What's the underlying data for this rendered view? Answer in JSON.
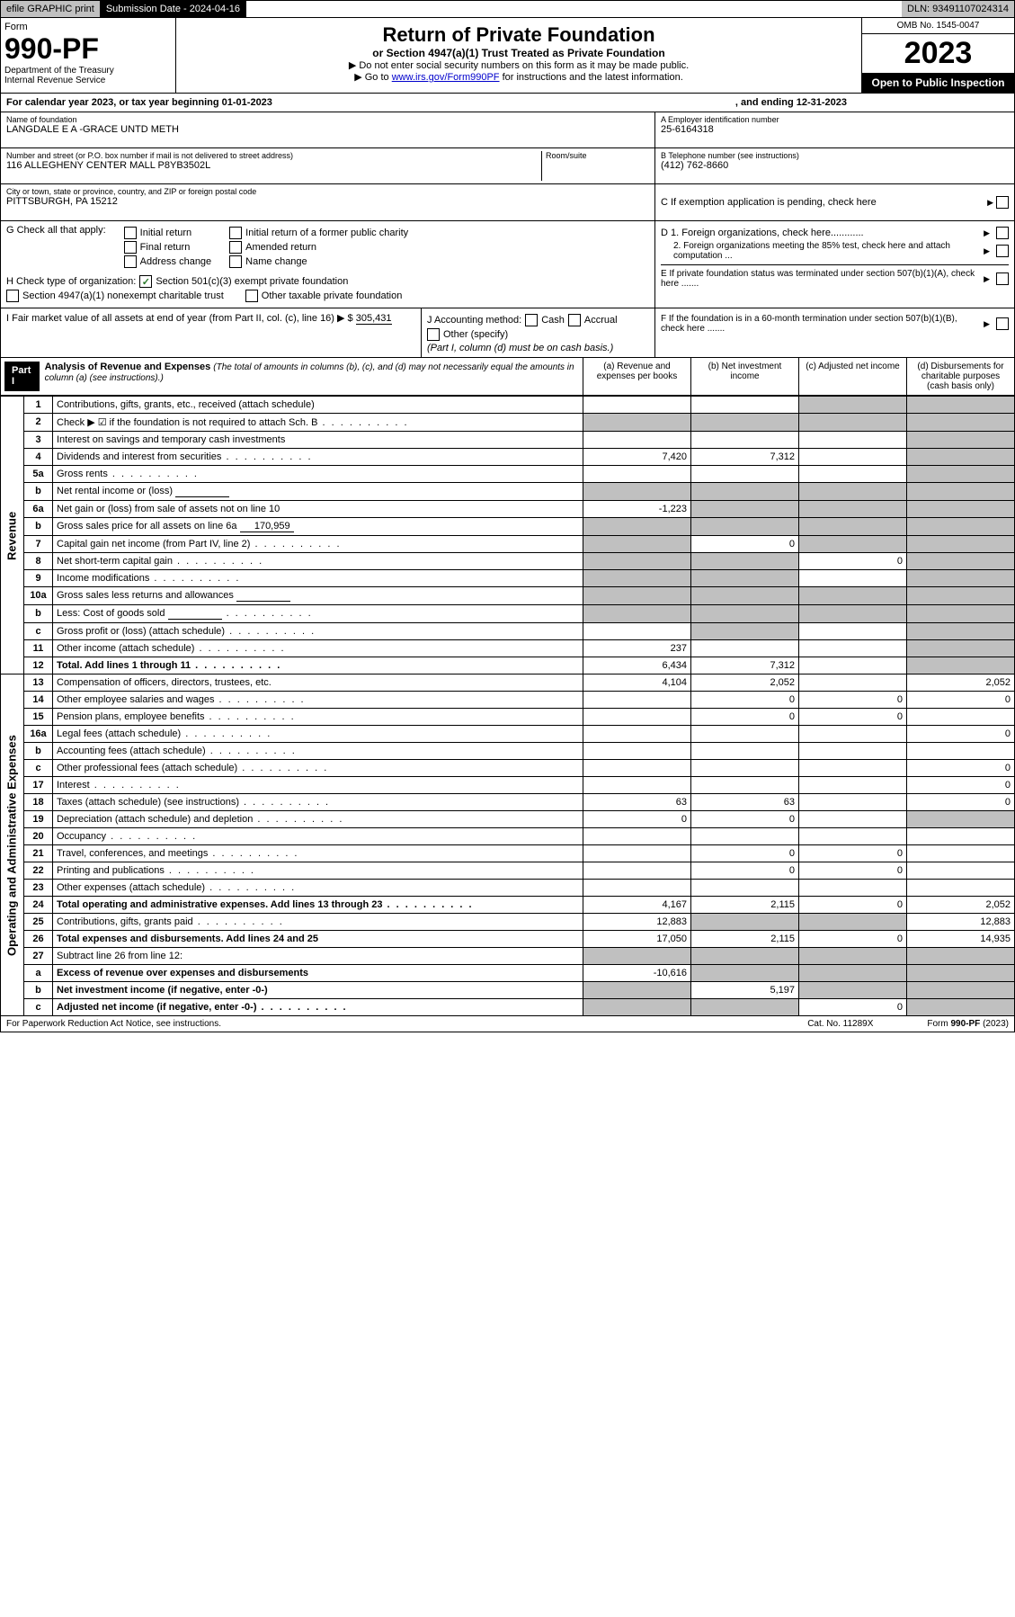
{
  "top": {
    "efile": "efile GRAPHIC print",
    "sub_label": "Submission Date - 2024-04-16",
    "dln": "DLN: 93491107024314"
  },
  "header": {
    "form": "Form",
    "num": "990-PF",
    "dept": "Department of the Treasury",
    "irs": "Internal Revenue Service",
    "title": "Return of Private Foundation",
    "subtitle": "or Section 4947(a)(1) Trust Treated as Private Foundation",
    "instr1": "▶ Do not enter social security numbers on this form as it may be made public.",
    "instr2_pre": "▶ Go to ",
    "instr2_link": "www.irs.gov/Form990PF",
    "instr2_post": " for instructions and the latest information.",
    "omb": "OMB No. 1545-0047",
    "year": "2023",
    "open": "Open to Public Inspection"
  },
  "calyear": {
    "begin": "For calendar year 2023, or tax year beginning 01-01-2023",
    "end": ", and ending 12-31-2023"
  },
  "info": {
    "name_label": "Name of foundation",
    "name": "LANGDALE E A -GRACE UNTD METH",
    "addr_label": "Number and street (or P.O. box number if mail is not delivered to street address)",
    "addr": "116 ALLEGHENY CENTER MALL P8YB3502L",
    "room_label": "Room/suite",
    "city_label": "City or town, state or province, country, and ZIP or foreign postal code",
    "city": "PITTSBURGH, PA  15212",
    "ein_label": "A Employer identification number",
    "ein": "25-6164318",
    "tel_label": "B Telephone number (see instructions)",
    "tel": "(412) 762-8660",
    "c_label": "C If exemption application is pending, check here"
  },
  "g": {
    "label": "G Check all that apply:",
    "initial": "Initial return",
    "final": "Final return",
    "addr_change": "Address change",
    "initial_former": "Initial return of a former public charity",
    "amended": "Amended return",
    "name_change": "Name change"
  },
  "h": {
    "label": "H Check type of organization:",
    "opt1": "Section 501(c)(3) exempt private foundation",
    "opt2": "Section 4947(a)(1) nonexempt charitable trust",
    "opt3": "Other taxable private foundation"
  },
  "d": {
    "d1": "D 1. Foreign organizations, check here............",
    "d2": "2. Foreign organizations meeting the 85% test, check here and attach computation ...",
    "e": "E  If private foundation status was terminated under section 507(b)(1)(A), check here .......",
    "f": "F  If the foundation is in a 60-month termination under section 507(b)(1)(B), check here ......."
  },
  "i": {
    "label": "I Fair market value of all assets at end of year (from Part II, col. (c), line 16)",
    "arrow": "▶ $",
    "val": "305,431"
  },
  "j": {
    "label": "J Accounting method:",
    "cash": "Cash",
    "accrual": "Accrual",
    "other": "Other (specify)",
    "note": "(Part I, column (d) must be on cash basis.)"
  },
  "part1": {
    "label": "Part I",
    "title": "Analysis of Revenue and Expenses",
    "note": "(The total of amounts in columns (b), (c), and (d) may not necessarily equal the amounts in column (a) (see instructions).)",
    "col_a": "(a)   Revenue and expenses per books",
    "col_b": "(b)   Net investment income",
    "col_c": "(c)   Adjusted net income",
    "col_d": "(d)   Disbursements for charitable purposes (cash basis only)"
  },
  "side": {
    "rev": "Revenue",
    "exp": "Operating and Administrative Expenses"
  },
  "rows": [
    {
      "n": "1",
      "d": "Contributions, gifts, grants, etc., received (attach schedule)",
      "a": "",
      "b": "",
      "c": "g",
      "dd": "g"
    },
    {
      "n": "2",
      "d": "Check ▶ ☑ if the foundation is not required to attach Sch. B",
      "a": "g",
      "b": "g",
      "c": "g",
      "dd": "g",
      "dots": true
    },
    {
      "n": "3",
      "d": "Interest on savings and temporary cash investments",
      "a": "",
      "b": "",
      "c": "",
      "dd": "g"
    },
    {
      "n": "4",
      "d": "Dividends and interest from securities",
      "a": "7,420",
      "b": "7,312",
      "c": "",
      "dd": "g",
      "dots": true
    },
    {
      "n": "5a",
      "d": "Gross rents",
      "a": "",
      "b": "",
      "c": "",
      "dd": "g",
      "dots": true
    },
    {
      "n": "b",
      "d": "Net rental income or (loss)",
      "a": "g",
      "b": "g",
      "c": "g",
      "dd": "g",
      "sub": true
    },
    {
      "n": "6a",
      "d": "Net gain or (loss) from sale of assets not on line 10",
      "a": "-1,223",
      "b": "g",
      "c": "g",
      "dd": "g"
    },
    {
      "n": "b",
      "d": "Gross sales price for all assets on line 6a",
      "a": "g",
      "b": "g",
      "c": "g",
      "dd": "g",
      "sub": true,
      "subval": "170,959"
    },
    {
      "n": "7",
      "d": "Capital gain net income (from Part IV, line 2)",
      "a": "g",
      "b": "0",
      "c": "g",
      "dd": "g",
      "dots": true
    },
    {
      "n": "8",
      "d": "Net short-term capital gain",
      "a": "g",
      "b": "g",
      "c": "0",
      "dd": "g",
      "dots": true
    },
    {
      "n": "9",
      "d": "Income modifications",
      "a": "g",
      "b": "g",
      "c": "",
      "dd": "g",
      "dots": true
    },
    {
      "n": "10a",
      "d": "Gross sales less returns and allowances",
      "a": "g",
      "b": "g",
      "c": "g",
      "dd": "g",
      "sub": true
    },
    {
      "n": "b",
      "d": "Less: Cost of goods sold",
      "a": "g",
      "b": "g",
      "c": "g",
      "dd": "g",
      "sub": true,
      "dots": true
    },
    {
      "n": "c",
      "d": "Gross profit or (loss) (attach schedule)",
      "a": "",
      "b": "g",
      "c": "",
      "dd": "g",
      "dots": true
    },
    {
      "n": "11",
      "d": "Other income (attach schedule)",
      "a": "237",
      "b": "",
      "c": "",
      "dd": "g",
      "dots": true
    },
    {
      "n": "12",
      "d": "Total. Add lines 1 through 11",
      "a": "6,434",
      "b": "7,312",
      "c": "",
      "dd": "g",
      "bold": true,
      "dots": true
    }
  ],
  "exp_rows": [
    {
      "n": "13",
      "d": "Compensation of officers, directors, trustees, etc.",
      "a": "4,104",
      "b": "2,052",
      "c": "",
      "dd": "2,052"
    },
    {
      "n": "14",
      "d": "Other employee salaries and wages",
      "a": "",
      "b": "0",
      "c": "0",
      "dd": "0",
      "dots": true
    },
    {
      "n": "15",
      "d": "Pension plans, employee benefits",
      "a": "",
      "b": "0",
      "c": "0",
      "dd": "",
      "dots": true
    },
    {
      "n": "16a",
      "d": "Legal fees (attach schedule)",
      "a": "",
      "b": "",
      "c": "",
      "dd": "0",
      "dots": true
    },
    {
      "n": "b",
      "d": "Accounting fees (attach schedule)",
      "a": "",
      "b": "",
      "c": "",
      "dd": "",
      "dots": true
    },
    {
      "n": "c",
      "d": "Other professional fees (attach schedule)",
      "a": "",
      "b": "",
      "c": "",
      "dd": "0",
      "dots": true
    },
    {
      "n": "17",
      "d": "Interest",
      "a": "",
      "b": "",
      "c": "",
      "dd": "0",
      "dots": true
    },
    {
      "n": "18",
      "d": "Taxes (attach schedule) (see instructions)",
      "a": "63",
      "b": "63",
      "c": "",
      "dd": "0",
      "dots": true
    },
    {
      "n": "19",
      "d": "Depreciation (attach schedule) and depletion",
      "a": "0",
      "b": "0",
      "c": "",
      "dd": "g",
      "dots": true
    },
    {
      "n": "20",
      "d": "Occupancy",
      "a": "",
      "b": "",
      "c": "",
      "dd": "",
      "dots": true
    },
    {
      "n": "21",
      "d": "Travel, conferences, and meetings",
      "a": "",
      "b": "0",
      "c": "0",
      "dd": "",
      "dots": true
    },
    {
      "n": "22",
      "d": "Printing and publications",
      "a": "",
      "b": "0",
      "c": "0",
      "dd": "",
      "dots": true
    },
    {
      "n": "23",
      "d": "Other expenses (attach schedule)",
      "a": "",
      "b": "",
      "c": "",
      "dd": "",
      "dots": true
    },
    {
      "n": "24",
      "d": "Total operating and administrative expenses. Add lines 13 through 23",
      "a": "4,167",
      "b": "2,115",
      "c": "0",
      "dd": "2,052",
      "bold": true,
      "dots": true
    },
    {
      "n": "25",
      "d": "Contributions, gifts, grants paid",
      "a": "12,883",
      "b": "g",
      "c": "g",
      "dd": "12,883",
      "dots": true
    },
    {
      "n": "26",
      "d": "Total expenses and disbursements. Add lines 24 and 25",
      "a": "17,050",
      "b": "2,115",
      "c": "0",
      "dd": "14,935",
      "bold": true
    },
    {
      "n": "27",
      "d": "Subtract line 26 from line 12:",
      "a": "g",
      "b": "g",
      "c": "g",
      "dd": "g"
    },
    {
      "n": "a",
      "d": "Excess of revenue over expenses and disbursements",
      "a": "-10,616",
      "b": "g",
      "c": "g",
      "dd": "g",
      "bold": true
    },
    {
      "n": "b",
      "d": "Net investment income (if negative, enter -0-)",
      "a": "g",
      "b": "5,197",
      "c": "g",
      "dd": "g",
      "bold": true
    },
    {
      "n": "c",
      "d": "Adjusted net income (if negative, enter -0-)",
      "a": "g",
      "b": "g",
      "c": "0",
      "dd": "g",
      "bold": true,
      "dots": true
    }
  ],
  "footer": {
    "left": "For Paperwork Reduction Act Notice, see instructions.",
    "mid": "Cat. No. 11289X",
    "right": "Form 990-PF (2023)"
  }
}
